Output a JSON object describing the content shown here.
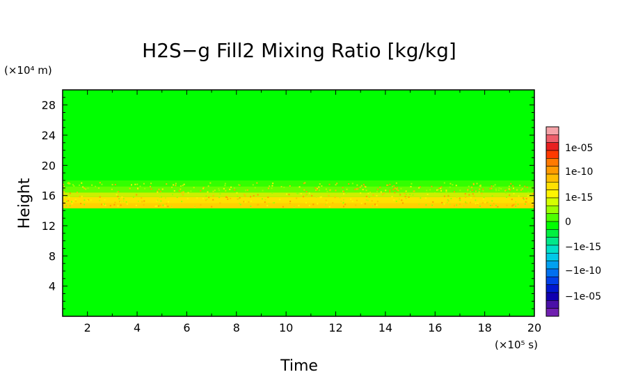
{
  "chart_data": {
    "type": "heatmap",
    "title": "H2S−g Fill2 Mixing Ratio [kg/kg]",
    "xlabel": "Time",
    "ylabel": "Height",
    "x_unit": "(×10⁵ s)",
    "y_unit": "(×10⁴ m)",
    "xlim": [
      1,
      20
    ],
    "ylim": [
      0,
      30
    ],
    "x_ticks": [
      "2",
      "4",
      "6",
      "8",
      "10",
      "12",
      "14",
      "16",
      "18",
      "20"
    ],
    "y_ticks": [
      "4",
      "8",
      "12",
      "16",
      "20",
      "24",
      "28"
    ],
    "background_color": "#00ff00",
    "bands": [
      {
        "y0": 17.2,
        "y1": 18.0,
        "color": "#33ff00"
      },
      {
        "y0": 16.4,
        "y1": 17.2,
        "color": "#66ff00"
      },
      {
        "y0": 15.8,
        "y1": 16.4,
        "color": "#ccf000"
      },
      {
        "y0": 15.0,
        "y1": 15.8,
        "color": "#ffe000"
      },
      {
        "y0": 14.3,
        "y1": 15.0,
        "color": "#ffd200"
      }
    ],
    "colorbar": {
      "labels": [
        "1e-05",
        "1e-10",
        "1e-15",
        "0",
        "−1e-15",
        "−1e-10",
        "−1e-05"
      ],
      "colors": [
        "#f5a3a8",
        "#ee5f6b",
        "#e82020",
        "#ff3a00",
        "#ff7a00",
        "#ff9b00",
        "#ffbe00",
        "#ffe000",
        "#fff400",
        "#d4ff00",
        "#99ff00",
        "#4dff00",
        "#00ff00",
        "#00f040",
        "#00e88a",
        "#00e0c8",
        "#00c8e8",
        "#00a0f0",
        "#0070f0",
        "#0040e8",
        "#0018d0",
        "#1000b0",
        "#4a10a8",
        "#7020b0"
      ]
    }
  }
}
